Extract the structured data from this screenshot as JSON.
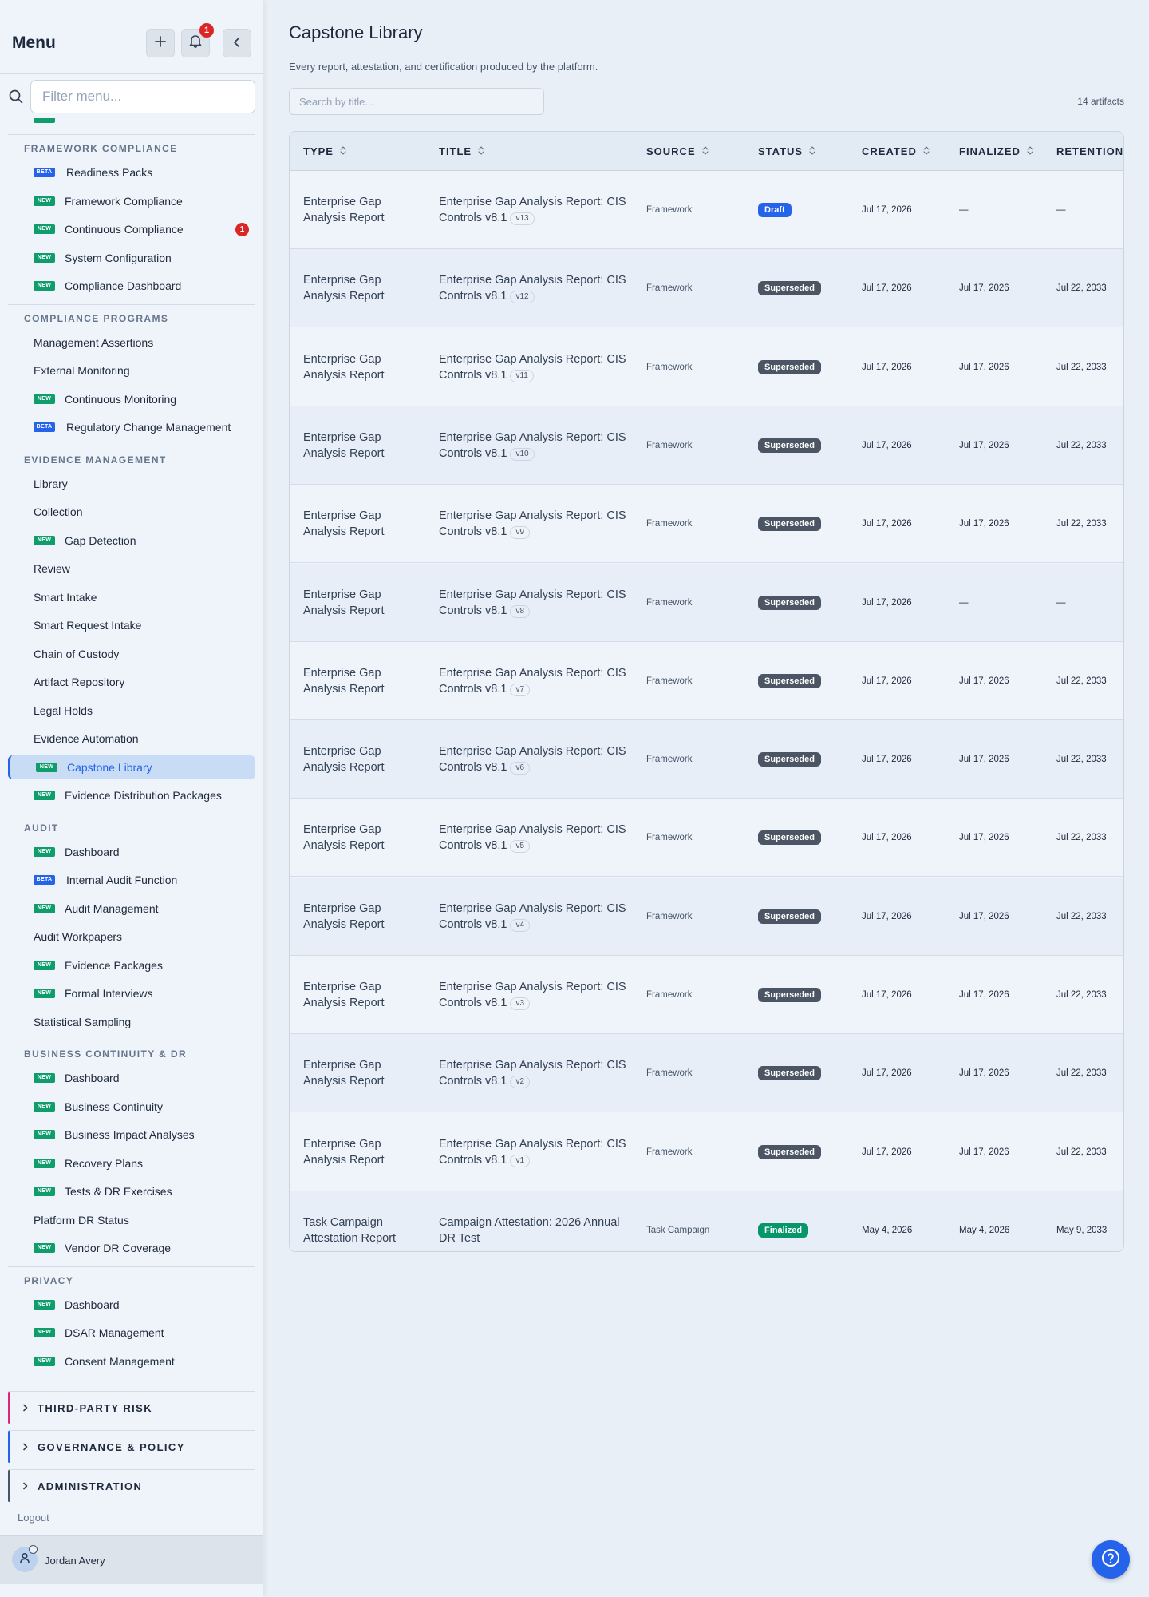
{
  "sidebar": {
    "title": "Menu",
    "notification_count": "1",
    "filter_placeholder": "Filter menu...",
    "badge_labels": {
      "new": "NEW",
      "beta": "BETA"
    },
    "sections": [
      {
        "heading": "FRAMEWORK COMPLIANCE",
        "items": [
          {
            "label": "Readiness Packs",
            "badge": "beta"
          },
          {
            "label": "Framework Compliance",
            "badge": "new"
          },
          {
            "label": "Continuous Compliance",
            "badge": "new",
            "count": "1"
          },
          {
            "label": "System Configuration",
            "badge": "new"
          },
          {
            "label": "Compliance Dashboard",
            "badge": "new"
          }
        ]
      },
      {
        "heading": "COMPLIANCE PROGRAMS",
        "items": [
          {
            "label": "Management Assertions"
          },
          {
            "label": "External Monitoring"
          },
          {
            "label": "Continuous Monitoring",
            "badge": "new"
          },
          {
            "label": "Regulatory Change Management",
            "badge": "beta"
          }
        ]
      },
      {
        "heading": "EVIDENCE MANAGEMENT",
        "items": [
          {
            "label": "Library"
          },
          {
            "label": "Collection"
          },
          {
            "label": "Gap Detection",
            "badge": "new"
          },
          {
            "label": "Review"
          },
          {
            "label": "Smart Intake"
          },
          {
            "label": "Smart Request Intake"
          },
          {
            "label": "Chain of Custody"
          },
          {
            "label": "Artifact Repository"
          },
          {
            "label": "Legal Holds"
          },
          {
            "label": "Evidence Automation"
          },
          {
            "label": "Capstone Library",
            "badge": "new",
            "active": true
          },
          {
            "label": "Evidence Distribution Packages",
            "badge": "new"
          }
        ]
      },
      {
        "heading": "AUDIT",
        "items": [
          {
            "label": "Dashboard",
            "badge": "new"
          },
          {
            "label": "Internal Audit Function",
            "badge": "beta"
          },
          {
            "label": "Audit Management",
            "badge": "new"
          },
          {
            "label": "Audit Workpapers"
          },
          {
            "label": "Evidence Packages",
            "badge": "new"
          },
          {
            "label": "Formal Interviews",
            "badge": "new"
          },
          {
            "label": "Statistical Sampling"
          }
        ]
      },
      {
        "heading": "BUSINESS CONTINUITY & DR",
        "items": [
          {
            "label": "Dashboard",
            "badge": "new"
          },
          {
            "label": "Business Continuity",
            "badge": "new"
          },
          {
            "label": "Business Impact Analyses",
            "badge": "new"
          },
          {
            "label": "Recovery Plans",
            "badge": "new"
          },
          {
            "label": "Tests & DR Exercises",
            "badge": "new"
          },
          {
            "label": "Platform DR Status"
          },
          {
            "label": "Vendor DR Coverage",
            "badge": "new"
          }
        ]
      },
      {
        "heading": "PRIVACY",
        "items": [
          {
            "label": "Dashboard",
            "badge": "new"
          },
          {
            "label": "DSAR Management",
            "badge": "new"
          },
          {
            "label": "Consent Management",
            "badge": "new"
          }
        ]
      }
    ],
    "collapsed_groups": [
      {
        "label": "THIRD-PARTY RISK",
        "color": "#db2777"
      },
      {
        "label": "GOVERNANCE & POLICY",
        "color": "#2563eb"
      },
      {
        "label": "ADMINISTRATION",
        "color": "#475569"
      }
    ],
    "logout_label": "Logout",
    "user_name": "Jordan Avery"
  },
  "main": {
    "title": "Capstone Library",
    "description": "Every report, attestation, and certification produced by the platform.",
    "search_placeholder": "Search by title...",
    "artifact_count": "14 artifacts",
    "columns": [
      "TYPE",
      "TITLE",
      "SOURCE",
      "STATUS",
      "CREATED",
      "FINALIZED",
      "RETENTION"
    ],
    "status_colors": {
      "Draft": "#2563eb",
      "Superseded": "#4b5563",
      "Finalized": "#059669"
    },
    "rows": [
      {
        "type": "Enterprise Gap Analysis Report",
        "title": "Enterprise Gap Analysis Report: CIS Controls v8.1",
        "version": "v13",
        "source": "Framework",
        "status": "Draft",
        "created": "Jul 17, 2026",
        "finalized": "—",
        "retention": "—"
      },
      {
        "type": "Enterprise Gap Analysis Report",
        "title": "Enterprise Gap Analysis Report: CIS Controls v8.1",
        "version": "v12",
        "source": "Framework",
        "status": "Superseded",
        "created": "Jul 17, 2026",
        "finalized": "Jul 17, 2026",
        "retention": "Jul 22, 2033"
      },
      {
        "type": "Enterprise Gap Analysis Report",
        "title": "Enterprise Gap Analysis Report: CIS Controls v8.1",
        "version": "v11",
        "source": "Framework",
        "status": "Superseded",
        "created": "Jul 17, 2026",
        "finalized": "Jul 17, 2026",
        "retention": "Jul 22, 2033"
      },
      {
        "type": "Enterprise Gap Analysis Report",
        "title": "Enterprise Gap Analysis Report: CIS Controls v8.1",
        "version": "v10",
        "source": "Framework",
        "status": "Superseded",
        "created": "Jul 17, 2026",
        "finalized": "Jul 17, 2026",
        "retention": "Jul 22, 2033"
      },
      {
        "type": "Enterprise Gap Analysis Report",
        "title": "Enterprise Gap Analysis Report: CIS Controls v8.1",
        "version": "v9",
        "source": "Framework",
        "status": "Superseded",
        "created": "Jul 17, 2026",
        "finalized": "Jul 17, 2026",
        "retention": "Jul 22, 2033"
      },
      {
        "type": "Enterprise Gap Analysis Report",
        "title": "Enterprise Gap Analysis Report: CIS Controls v8.1",
        "version": "v8",
        "source": "Framework",
        "status": "Superseded",
        "created": "Jul 17, 2026",
        "finalized": "—",
        "retention": "—"
      },
      {
        "type": "Enterprise Gap Analysis Report",
        "title": "Enterprise Gap Analysis Report: CIS Controls v8.1",
        "version": "v7",
        "source": "Framework",
        "status": "Superseded",
        "created": "Jul 17, 2026",
        "finalized": "Jul 17, 2026",
        "retention": "Jul 22, 2033"
      },
      {
        "type": "Enterprise Gap Analysis Report",
        "title": "Enterprise Gap Analysis Report: CIS Controls v8.1",
        "version": "v6",
        "source": "Framework",
        "status": "Superseded",
        "created": "Jul 17, 2026",
        "finalized": "Jul 17, 2026",
        "retention": "Jul 22, 2033"
      },
      {
        "type": "Enterprise Gap Analysis Report",
        "title": "Enterprise Gap Analysis Report: CIS Controls v8.1",
        "version": "v5",
        "source": "Framework",
        "status": "Superseded",
        "created": "Jul 17, 2026",
        "finalized": "Jul 17, 2026",
        "retention": "Jul 22, 2033"
      },
      {
        "type": "Enterprise Gap Analysis Report",
        "title": "Enterprise Gap Analysis Report: CIS Controls v8.1",
        "version": "v4",
        "source": "Framework",
        "status": "Superseded",
        "created": "Jul 17, 2026",
        "finalized": "Jul 17, 2026",
        "retention": "Jul 22, 2033"
      },
      {
        "type": "Enterprise Gap Analysis Report",
        "title": "Enterprise Gap Analysis Report: CIS Controls v8.1",
        "version": "v3",
        "source": "Framework",
        "status": "Superseded",
        "created": "Jul 17, 2026",
        "finalized": "Jul 17, 2026",
        "retention": "Jul 22, 2033"
      },
      {
        "type": "Enterprise Gap Analysis Report",
        "title": "Enterprise Gap Analysis Report: CIS Controls v8.1",
        "version": "v2",
        "source": "Framework",
        "status": "Superseded",
        "created": "Jul 17, 2026",
        "finalized": "Jul 17, 2026",
        "retention": "Jul 22, 2033"
      },
      {
        "type": "Enterprise Gap Analysis Report",
        "title": "Enterprise Gap Analysis Report: CIS Controls v8.1",
        "version": "v1",
        "source": "Framework",
        "status": "Superseded",
        "created": "Jul 17, 2026",
        "finalized": "Jul 17, 2026",
        "retention": "Jul 22, 2033"
      },
      {
        "type": "Task Campaign Attestation Report",
        "title": "Campaign Attestation: 2026 Annual DR Test",
        "version": "",
        "source": "Task Campaign",
        "status": "Finalized",
        "created": "May 4, 2026",
        "finalized": "May 4, 2026",
        "retention": "May 9, 2033"
      }
    ]
  },
  "icons": {
    "add": "plus-icon",
    "notifications": "bell-icon",
    "collapse": "chevron-left-icon",
    "filter": "search-icon",
    "sort": "sort-icon",
    "group": "chevron-right-icon",
    "user": "user-icon",
    "help": "help-icon"
  }
}
